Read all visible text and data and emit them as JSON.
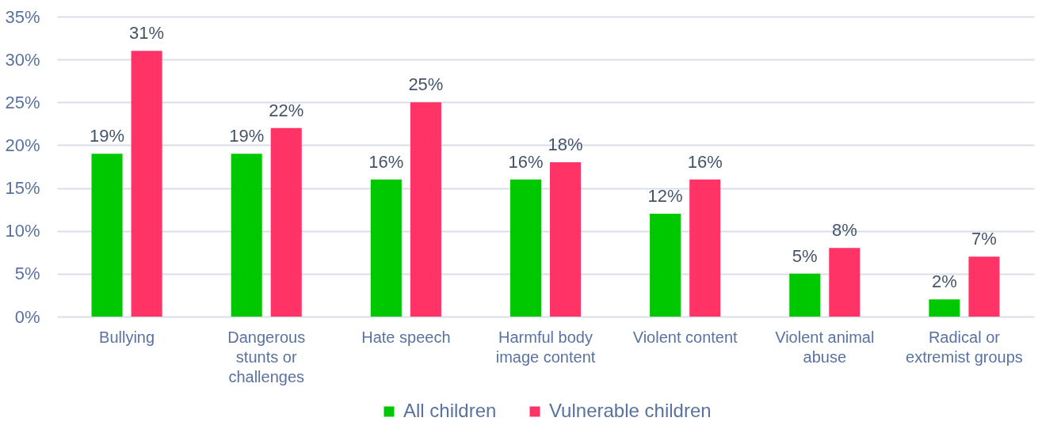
{
  "chart_data": {
    "type": "bar",
    "categories": [
      "Bullying",
      "Dangerous stunts or challenges",
      "Hate speech",
      "Harmful body image content",
      "Violent content",
      "Violent animal abuse",
      "Radical or extremist groups"
    ],
    "series": [
      {
        "name": "All children",
        "color": "#00c800",
        "values": [
          19,
          19,
          16,
          16,
          12,
          5,
          2
        ],
        "value_labels": [
          "19%",
          "19%",
          "16%",
          "16%",
          "12%",
          "5%",
          "2%"
        ]
      },
      {
        "name": "Vulnerable children",
        "color": "#ff3366",
        "values": [
          31,
          22,
          25,
          18,
          16,
          8,
          7
        ],
        "value_labels": [
          "31%",
          "22%",
          "25%",
          "18%",
          "16%",
          "8%",
          "7%"
        ]
      }
    ],
    "ylim": [
      0,
      35
    ],
    "yticks": [
      {
        "value": 0,
        "label": "0%"
      },
      {
        "value": 5,
        "label": "5%"
      },
      {
        "value": 10,
        "label": "10%"
      },
      {
        "value": 15,
        "label": "15%"
      },
      {
        "value": 20,
        "label": "20%"
      },
      {
        "value": 25,
        "label": "25%"
      },
      {
        "value": 30,
        "label": "30%"
      },
      {
        "value": 35,
        "label": "35%"
      }
    ],
    "grid": "y",
    "legend": "bottom"
  }
}
